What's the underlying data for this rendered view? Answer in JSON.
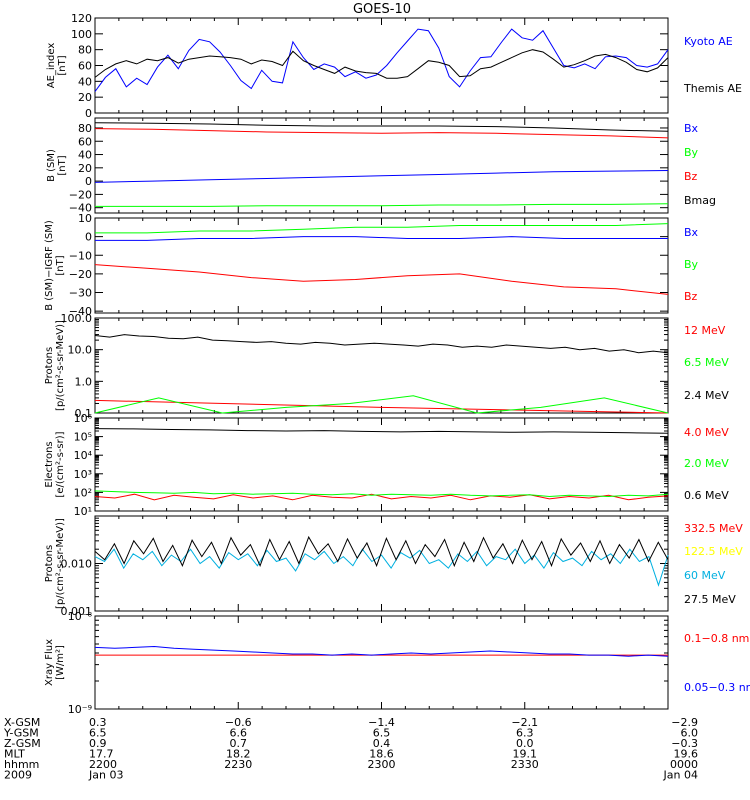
{
  "title": "GOES-10",
  "colors": {
    "black": "#000000",
    "blue": "#0000ff",
    "green": "#00ff00",
    "red": "#ff0000",
    "yellow": "#ffff00",
    "cyan": "#00b0e0"
  },
  "chart_data": [
    {
      "type": "line",
      "ylabel": [
        "AE_index",
        "[nT]"
      ],
      "yscale": "linear",
      "ylim": [
        0,
        120
      ],
      "yticks": [
        0,
        20,
        40,
        60,
        80,
        100,
        120
      ],
      "ytick_labels": [
        "0",
        "20",
        "40",
        "60",
        "80",
        "100",
        "120"
      ],
      "series": [
        {
          "name": "Kyoto AE",
          "color": "#0000ff",
          "values": [
            27,
            45,
            56,
            33,
            44,
            36,
            58,
            73,
            56,
            79,
            93,
            90,
            77,
            60,
            41,
            31,
            54,
            40,
            38,
            90,
            70,
            55,
            62,
            58,
            46,
            52,
            44,
            48,
            60,
            76,
            91,
            106,
            104,
            82,
            46,
            33,
            53,
            70,
            71,
            89,
            106,
            95,
            92,
            104,
            82,
            60,
            57,
            62,
            56,
            71,
            72,
            70,
            60,
            58,
            62,
            80
          ]
        },
        {
          "name": "Themis AE",
          "color": "#000000",
          "values": [
            45,
            55,
            62,
            66,
            62,
            68,
            66,
            70,
            63,
            68,
            70,
            72,
            71,
            70,
            68,
            62,
            67,
            65,
            60,
            78,
            66,
            60,
            55,
            50,
            58,
            53,
            51,
            50,
            44,
            44,
            46,
            56,
            66,
            64,
            60,
            46,
            47,
            56,
            58,
            64,
            70,
            76,
            80,
            77,
            68,
            58,
            61,
            66,
            72,
            74,
            70,
            64,
            55,
            52,
            57,
            70
          ]
        }
      ]
    },
    {
      "type": "line",
      "ylabel": [
        "B (SM)",
        "[nT]"
      ],
      "yscale": "linear",
      "ylim": [
        -48,
        95
      ],
      "yticks": [
        -40,
        -20,
        0,
        20,
        40,
        60,
        80
      ],
      "ytick_labels": [
        "−40",
        "−20",
        "0",
        "20",
        "40",
        "60",
        "80"
      ],
      "series": [
        {
          "name": "Bx",
          "color": "#0000ff",
          "values": [
            -2,
            0,
            2,
            4,
            6,
            8,
            10,
            12,
            14,
            15,
            16
          ]
        },
        {
          "name": "By",
          "color": "#00ff00",
          "values": [
            -38,
            -38,
            -38,
            -37,
            -37,
            -37,
            -36,
            -36,
            -35,
            -35,
            -34
          ]
        },
        {
          "name": "Bz",
          "color": "#ff0000",
          "values": [
            79,
            78,
            76,
            74,
            73,
            72,
            73,
            72,
            70,
            68,
            65
          ]
        },
        {
          "name": "Bmag",
          "color": "#000000",
          "values": [
            88,
            87,
            86,
            84,
            83,
            83,
            83,
            82,
            80,
            77,
            75
          ]
        }
      ]
    },
    {
      "type": "line",
      "ylabel": [
        "B (SM)−IGRF (SM)",
        "[nT]"
      ],
      "yscale": "linear",
      "ylim": [
        -41,
        10
      ],
      "yticks": [
        -40,
        -30,
        -20,
        -10,
        0,
        10
      ],
      "ytick_labels": [
        "−40",
        "−30",
        "−20",
        "−10",
        "0",
        "10"
      ],
      "series": [
        {
          "name": "Bx",
          "color": "#0000ff",
          "values": [
            -2,
            -2,
            -1,
            -1,
            0,
            0,
            -1,
            -1,
            0,
            -1,
            -1,
            -1
          ]
        },
        {
          "name": "By",
          "color": "#00ff00",
          "values": [
            2,
            2,
            3,
            3,
            4,
            5,
            5,
            6,
            6,
            6,
            6,
            7
          ]
        },
        {
          "name": "Bz",
          "color": "#ff0000",
          "values": [
            -15,
            -17,
            -19,
            -22,
            -24,
            -23,
            -21,
            -20,
            -24,
            -27,
            -28,
            -31
          ]
        }
      ]
    },
    {
      "type": "line",
      "ylabel": [
        "Protons",
        "[p/(cm²-s-sr-MeV)]"
      ],
      "yscale": "log",
      "ylim": [
        0.1,
        100
      ],
      "yticks": [
        0.1,
        1,
        10,
        100
      ],
      "ytick_labels": [
        "0.1",
        "1.0",
        "10.0",
        "100.0"
      ],
      "series": [
        {
          "name": "12 MeV",
          "color": "#ff0000",
          "values": [
            0.25,
            0.15,
            0.1
          ]
        },
        {
          "name": "6.5 MeV",
          "color": "#00ff00",
          "values": [
            0.1,
            0.3,
            0.1,
            0.15,
            0.2,
            0.35,
            0.1,
            0.15,
            0.3,
            0.1
          ]
        },
        {
          "name": "2.4 MeV",
          "color": "#000000",
          "values": [
            28,
            25,
            30,
            27,
            26,
            23,
            22,
            25,
            20,
            19,
            18,
            17,
            18,
            16,
            15,
            17,
            16,
            14,
            15,
            16,
            15,
            14,
            13,
            15,
            14,
            12,
            13,
            12,
            14,
            13,
            12,
            11,
            12,
            10,
            11,
            9,
            10,
            8,
            9,
            8
          ]
        }
      ]
    },
    {
      "type": "line",
      "ylabel": [
        "Electrons",
        "[e/(cm²-s-sr)]"
      ],
      "yscale": "log",
      "ylim": [
        10,
        1000000
      ],
      "yticks": [
        10,
        100,
        1000,
        10000,
        100000,
        1000000
      ],
      "ytick_labels": [
        "10¹",
        "10²",
        "10³",
        "10⁴",
        "10⁵",
        "10⁶"
      ],
      "series": [
        {
          "name": "4.0 MeV",
          "color": "#ff0000",
          "values": [
            60,
            50,
            80,
            40,
            70,
            55,
            45,
            75,
            50,
            65,
            40,
            70,
            55,
            50,
            80,
            45,
            60,
            50,
            70,
            40,
            65,
            55,
            75,
            45,
            60,
            50,
            70,
            40,
            55,
            65
          ]
        },
        {
          "name": "2.0 MeV",
          "color": "#00ff00",
          "values": [
            120,
            110,
            100,
            95,
            90,
            100,
            85,
            90,
            80,
            85,
            90,
            80,
            75,
            85,
            70,
            80,
            75,
            70,
            80,
            70,
            65,
            70,
            75,
            60,
            70,
            65,
            60,
            70,
            65,
            80
          ]
        },
        {
          "name": "0.6 MeV",
          "color": "#000000",
          "values": [
            270000,
            260000,
            240000,
            230000,
            210000,
            200000,
            210000,
            190000,
            180000,
            190000,
            180000,
            170000,
            180000,
            170000,
            160000,
            150000
          ]
        }
      ]
    },
    {
      "type": "line",
      "ylabel": [
        "Protons",
        "[p/(cm²-s-sr-MeV)]"
      ],
      "yscale": "log",
      "ylim": [
        0.001,
        0.1
      ],
      "yticks": [
        0.001,
        0.01
      ],
      "ytick_labels": [
        "0.001",
        "0.010"
      ],
      "series": [
        {
          "name": "332.5 MeV",
          "color": "#ff0000",
          "values": []
        },
        {
          "name": "122.5 MeV",
          "color": "#ffff00",
          "values": []
        },
        {
          "name": "60 MeV",
          "color": "#00b0e0",
          "values": [
            0.014,
            0.011,
            0.02,
            0.008,
            0.016,
            0.012,
            0.018,
            0.009,
            0.015,
            0.011,
            0.02,
            0.01,
            0.014,
            0.008,
            0.017,
            0.012,
            0.016,
            0.009,
            0.019,
            0.011,
            0.013,
            0.007,
            0.016,
            0.012,
            0.018,
            0.01,
            0.014,
            0.009,
            0.02,
            0.011,
            0.015,
            0.008,
            0.017,
            0.013,
            0.019,
            0.01,
            0.012,
            0.008,
            0.016,
            0.011,
            0.018,
            0.009,
            0.014,
            0.012,
            0.02,
            0.01,
            0.015,
            0.008,
            0.017,
            0.011,
            0.013,
            0.009,
            0.018,
            0.012,
            0.016,
            0.01,
            0.02,
            0.011,
            0.014,
            0.0035,
            0.015
          ]
        },
        {
          "name": "27.5 MeV",
          "color": "#000000",
          "values": [
            0.018,
            0.012,
            0.026,
            0.01,
            0.03,
            0.016,
            0.034,
            0.011,
            0.024,
            0.009,
            0.031,
            0.014,
            0.028,
            0.01,
            0.035,
            0.015,
            0.025,
            0.009,
            0.032,
            0.012,
            0.029,
            0.01,
            0.036,
            0.016,
            0.026,
            0.011,
            0.033,
            0.013,
            0.027,
            0.009,
            0.034,
            0.012,
            0.03,
            0.01,
            0.025,
            0.014,
            0.032,
            0.009,
            0.028,
            0.011,
            0.035,
            0.013,
            0.026,
            0.01,
            0.031,
            0.012,
            0.029,
            0.009,
            0.033,
            0.015,
            0.027,
            0.011,
            0.03,
            0.01,
            0.025,
            0.013,
            0.032,
            0.011,
            0.028,
            0.012
          ]
        }
      ]
    },
    {
      "type": "line",
      "ylabel": [
        "Xray Flux",
        "[W/m²]"
      ],
      "yscale": "log",
      "ylim": [
        1e-09,
        1e-08
      ],
      "yticks": [
        1e-09,
        1e-08
      ],
      "ytick_labels": [
        "10⁻⁹",
        "10⁻⁸"
      ],
      "series": [
        {
          "name": "0.1−0.8 nm",
          "color": "#ff0000",
          "values": [
            3.8e-09,
            3.8e-09
          ]
        },
        {
          "name": "0.05−0.3 nm",
          "color": "#0000ff",
          "values": [
            4.6e-09,
            4.5e-09,
            4.6e-09,
            4.7e-09,
            4.5e-09,
            4.4e-09,
            4.3e-09,
            4.2e-09,
            4.1e-09,
            4e-09,
            3.9e-09,
            3.9e-09,
            3.8e-09,
            3.9e-09,
            3.8e-09,
            3.9e-09,
            4e-09,
            3.9e-09,
            4e-09,
            4.1e-09,
            4.2e-09,
            4.1e-09,
            4e-09,
            3.9e-09,
            3.9e-09,
            3.8e-09,
            3.8e-09,
            3.7e-09,
            3.8e-09,
            3.7e-09
          ]
        }
      ]
    }
  ],
  "footer": {
    "rows": [
      {
        "label": "X-GSM",
        "values": [
          "0.3",
          "−0.6",
          "−1.4",
          "−2.1",
          "−2.9"
        ]
      },
      {
        "label": "Y-GSM",
        "values": [
          "6.5",
          "6.6",
          "6.5",
          "6.3",
          "6.0"
        ]
      },
      {
        "label": "Z-GSM",
        "values": [
          "0.9",
          "0.7",
          "0.4",
          "0.0",
          "−0.3"
        ]
      },
      {
        "label": "MLT",
        "values": [
          "17.7",
          "18.2",
          "18.6",
          "19.1",
          "19.6"
        ]
      },
      {
        "label": "hhmm",
        "values": [
          "2200",
          "2230",
          "2300",
          "2330",
          "0000"
        ]
      },
      {
        "label": "2009",
        "values": [
          "Jan 03",
          "",
          "",
          "",
          "Jan 04"
        ]
      }
    ]
  }
}
